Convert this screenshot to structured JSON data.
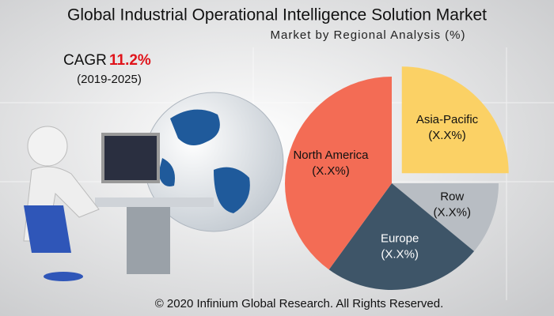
{
  "chart_data": {
    "type": "pie",
    "title": "Global Industrial Operational Intelligence Solution Market",
    "subtitle": "Market by Regional Analysis (%)",
    "cagr_label": "CAGR",
    "cagr_value": "11.2%",
    "cagr_period": "(2019-2025)",
    "categories": [
      "Asia-Pacific",
      "Row",
      "Europe",
      "North America"
    ],
    "values": [
      25,
      11,
      24,
      40
    ],
    "value_labels": [
      "(X.X%)",
      "(X.X%)",
      "(X.X%)",
      "(X.X%)"
    ],
    "colors": [
      "#fbd165",
      "#b8bdc3",
      "#3e5568",
      "#f36c55"
    ],
    "exploded": "Asia-Pacific",
    "footer": "© 2020 Infinium Global Research. All Rights Reserved."
  }
}
